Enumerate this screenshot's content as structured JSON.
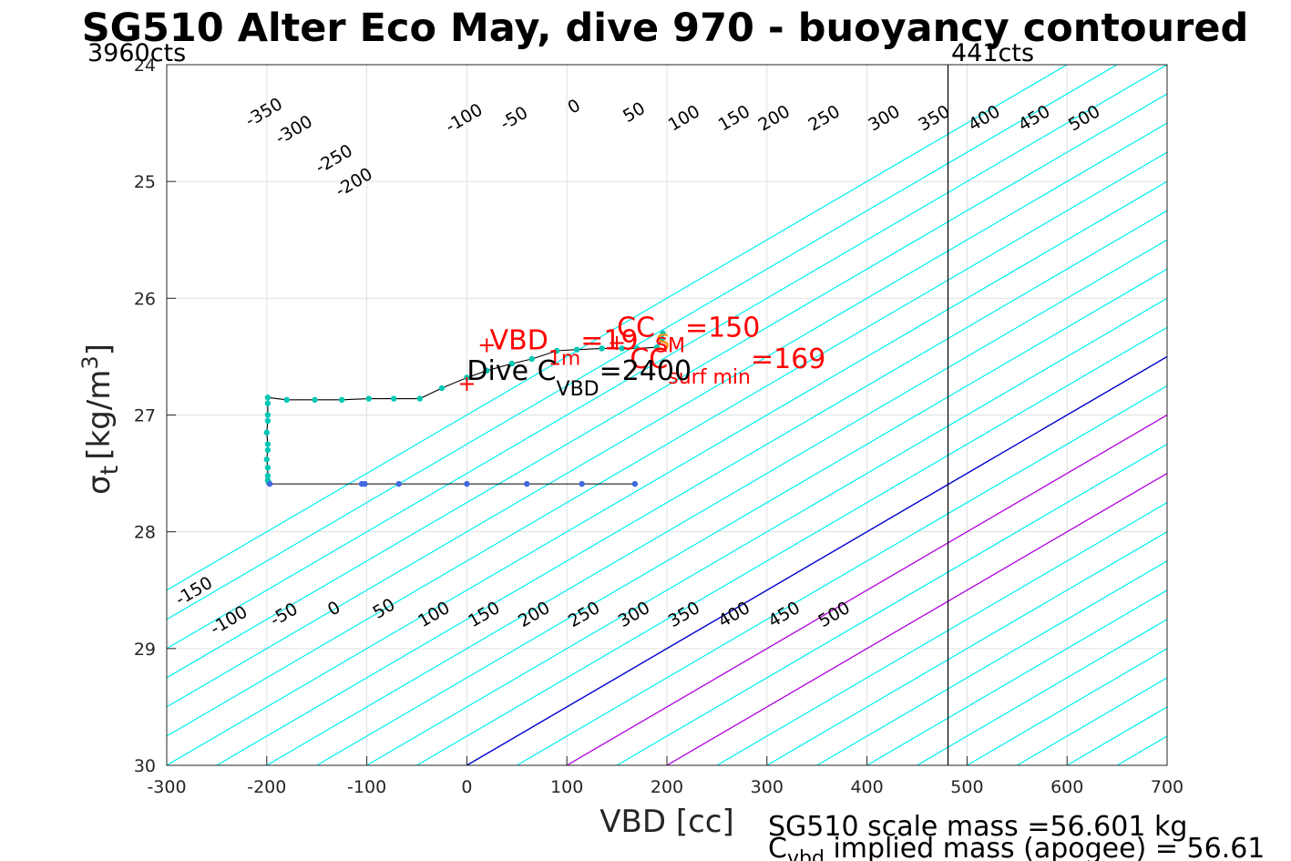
{
  "chart_data": {
    "type": "scatter",
    "title": "SG510 Alter Eco May, dive 970 - buoyancy contoured",
    "xlabel": "VBD [cc]",
    "ylabel": "σ_t [kg/m^3]",
    "ylabel_parts": {
      "main": "σ",
      "sub": "t",
      "unit_open": "[kg/m",
      "unit_sup": "3",
      "unit_close": "]"
    },
    "xlim": [
      -300,
      700
    ],
    "ylim": [
      24,
      30
    ],
    "y_reversed": true,
    "grid": true,
    "x_ticks": [
      "-300",
      "-200",
      "-100",
      "0",
      "100",
      "200",
      "300",
      "400",
      "500",
      "600",
      "700"
    ],
    "y_ticks": [
      "24",
      "25",
      "26",
      "27",
      "28",
      "29",
      "30"
    ],
    "counts_labels": {
      "left": "3960cts",
      "right": "441cts"
    },
    "vbd_limit_line_x": 481,
    "contour_slope_cc_per_sigma": 200,
    "contours": {
      "cyan_levels": [
        -350,
        -300,
        -250,
        -200,
        -150,
        -100,
        -50,
        50,
        150,
        250,
        300,
        350,
        400,
        450,
        500
      ],
      "blue_levels": [
        0
      ],
      "magenta_levels": [
        100,
        200
      ],
      "extra_cyan_levels": [
        -600,
        -550,
        -500,
        -450,
        -400,
        550,
        600,
        650,
        700,
        750,
        800,
        850,
        900
      ],
      "labels_top": [
        "-350",
        "-300",
        "-250",
        "-200",
        "-100",
        "-50",
        "0",
        "50",
        "100",
        "150",
        "200",
        "250",
        "300",
        "350",
        "400",
        "450",
        "500"
      ],
      "labels_top_vbd": [
        -200,
        -170,
        -130,
        -110,
        0,
        50,
        110,
        170,
        220,
        270,
        310,
        360,
        420,
        470,
        520,
        570,
        620
      ],
      "labels_top_sigma": [
        24.45,
        24.6,
        24.85,
        25.05,
        24.5,
        24.5,
        24.4,
        24.45,
        24.5,
        24.5,
        24.5,
        24.5,
        24.5,
        24.5,
        24.5,
        24.5,
        24.5
      ],
      "labels_bottom": [
        "-150",
        "-100",
        "-50",
        "0",
        "50",
        "100",
        "150",
        "200",
        "250",
        "300",
        "350",
        "400",
        "450",
        "500"
      ],
      "labels_bottom_vbd": [
        -270,
        -235,
        -180,
        -130,
        -80,
        -30,
        20,
        70,
        120,
        170,
        220,
        270,
        320,
        370
      ],
      "labels_bottom_sigma": [
        28.55,
        28.8,
        28.75,
        28.7,
        28.7,
        28.75,
        28.75,
        28.75,
        28.75,
        28.75,
        28.75,
        28.75,
        28.75,
        28.75
      ]
    },
    "series": [
      {
        "phase": "dive",
        "color": "#00c8b4",
        "points": [
          {
            "x": 196,
            "y": 26.3
          },
          {
            "x": 195,
            "y": 26.35
          },
          {
            "x": 190,
            "y": 26.42
          },
          {
            "x": 170,
            "y": 26.43
          },
          {
            "x": 155,
            "y": 26.43
          },
          {
            "x": 135,
            "y": 26.43
          },
          {
            "x": 110,
            "y": 26.44
          },
          {
            "x": 90,
            "y": 26.45
          },
          {
            "x": 65,
            "y": 26.52
          },
          {
            "x": 45,
            "y": 26.56
          },
          {
            "x": 20,
            "y": 26.62
          },
          {
            "x": 0,
            "y": 26.68
          },
          {
            "x": -25,
            "y": 26.77
          },
          {
            "x": -47,
            "y": 26.86
          },
          {
            "x": -73,
            "y": 26.86
          },
          {
            "x": -98,
            "y": 26.86
          },
          {
            "x": -125,
            "y": 26.87
          },
          {
            "x": -152,
            "y": 26.87
          },
          {
            "x": -180,
            "y": 26.87
          },
          {
            "x": -199,
            "y": 26.85
          },
          {
            "x": -199,
            "y": 26.9
          },
          {
            "x": -199,
            "y": 27.0
          },
          {
            "x": -199,
            "y": 27.05
          },
          {
            "x": -200,
            "y": 27.15
          },
          {
            "x": -199,
            "y": 27.25
          },
          {
            "x": -199,
            "y": 27.3
          },
          {
            "x": -200,
            "y": 27.38
          },
          {
            "x": -199,
            "y": 27.45
          },
          {
            "x": -199,
            "y": 27.52
          },
          {
            "x": -199,
            "y": 27.56
          },
          {
            "x": -198,
            "y": 27.58
          }
        ]
      },
      {
        "phase": "climb",
        "color": "#4169e1",
        "points": [
          {
            "x": -197,
            "y": 27.59
          },
          {
            "x": -105,
            "y": 27.59
          },
          {
            "x": -102,
            "y": 27.59
          },
          {
            "x": -68,
            "y": 27.59
          },
          {
            "x": 0,
            "y": 27.59
          },
          {
            "x": 60,
            "y": 27.59
          },
          {
            "x": 115,
            "y": 27.59
          },
          {
            "x": 168,
            "y": 27.59
          }
        ]
      }
    ],
    "markers": [
      {
        "shape": "+",
        "x": 20,
        "y": 26.4,
        "color": "#ff0000"
      },
      {
        "shape": "+",
        "x": 150,
        "y": 26.38,
        "color": "#ff0000"
      },
      {
        "shape": "+",
        "x": 0,
        "y": 26.73,
        "color": "#ff0000"
      },
      {
        "shape": "S",
        "x": 196,
        "y": 26.38,
        "color": "#ff8c00"
      }
    ],
    "annotations": [
      {
        "text_main": "VBD",
        "text_sub": "1m",
        "text_value": "=19",
        "color": "#ff0000",
        "x": 23,
        "y": 26.44
      },
      {
        "text_main": "CC",
        "text_sub": "SM",
        "text_value": "=150",
        "color": "#ff0000",
        "x": 150,
        "y": 26.33
      },
      {
        "text_main": "CC",
        "text_sub": "surf min",
        "text_value": "=169",
        "color": "#ff0000",
        "x": 163,
        "y": 26.6
      },
      {
        "text_main": "Dive C",
        "text_sub": "VBD",
        "text_value": "=2400",
        "color": "#000000",
        "x": 0,
        "y": 26.7
      }
    ],
    "footer": {
      "line1": "SG510 scale mass =56.601 kg",
      "line2_main": "C",
      "line2_sub": "vbd",
      "line2_rest": " implied mass (apogee) = 56.61"
    }
  }
}
